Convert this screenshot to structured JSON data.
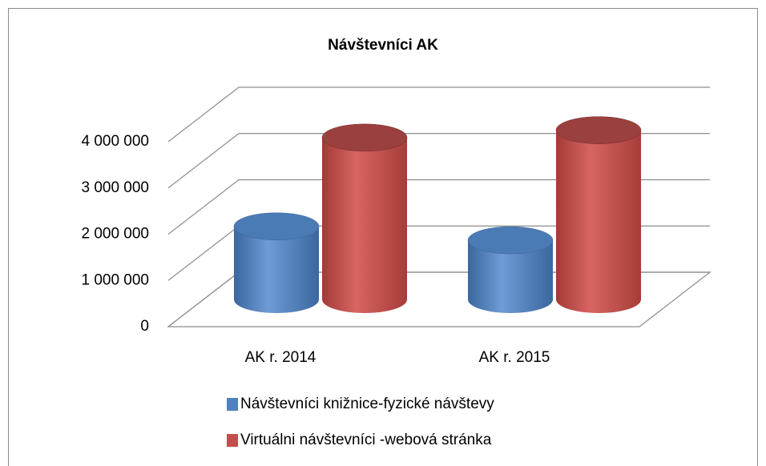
{
  "chart_data": {
    "type": "bar3d",
    "title": "Návštevníci AK",
    "categories": [
      "AK r. 2014",
      "AK r. 2015"
    ],
    "series": [
      {
        "name": "Návštevníci knižnice-fyzické návštevy",
        "color": "#4f81bd",
        "values": [
          1580000,
          1280000
        ]
      },
      {
        "name": "Virtuálni návštevníci -webová stránka",
        "color": "#c0504d",
        "values": [
          3500000,
          3660000
        ]
      }
    ],
    "ylim": [
      0,
      4000000
    ],
    "yticks": [
      {
        "value": 0,
        "label": "0"
      },
      {
        "value": 1000000,
        "label": "1 000 000"
      },
      {
        "value": 2000000,
        "label": "2 000 000"
      },
      {
        "value": 3000000,
        "label": "3 000 000"
      },
      {
        "value": 4000000,
        "label": "4 000 000"
      }
    ],
    "grid": true,
    "legend": "bottom"
  }
}
